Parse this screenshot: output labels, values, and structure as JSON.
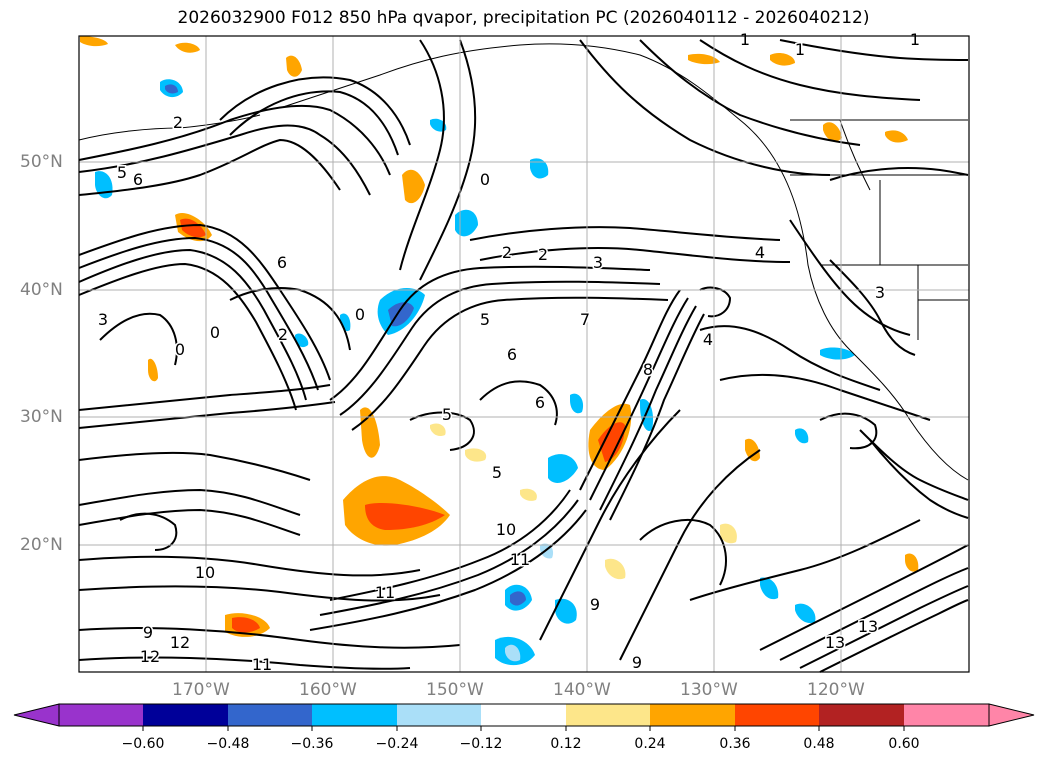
{
  "title": "2026032900 F012 850 hPa qvapor, precipitation PC (2026040112 - 2026040212)",
  "map": {
    "lat_labels": [
      "50°N",
      "40°N",
      "30°N",
      "20°N"
    ],
    "lon_labels": [
      "170°W",
      "160°W",
      "150°W",
      "140°W",
      "130°W",
      "120°W"
    ],
    "contour_labels": [
      "1",
      "1",
      "1",
      "2",
      "2",
      "2",
      "2",
      "3",
      "3",
      "3",
      "4",
      "4",
      "5",
      "5",
      "5",
      "5",
      "6",
      "6",
      "6",
      "6",
      "7",
      "8",
      "9",
      "9",
      "9",
      "10",
      "10",
      "11",
      "11",
      "11",
      "12",
      "12",
      "13",
      "13",
      "0",
      "0",
      "0",
      "0"
    ]
  },
  "colorbar": {
    "ticks": [
      "−0.60",
      "−0.48",
      "−0.36",
      "−0.24",
      "−0.12",
      "0.12",
      "0.24",
      "0.36",
      "0.48",
      "0.60"
    ],
    "colors": [
      "#9933cc",
      "#000099",
      "#3366cc",
      "#00bfff",
      "#aadff8",
      "#ffffff",
      "#fde68a",
      "#ffa500",
      "#ff4500",
      "#b22222",
      "#ff85a8",
      "#ff85a8"
    ]
  }
}
